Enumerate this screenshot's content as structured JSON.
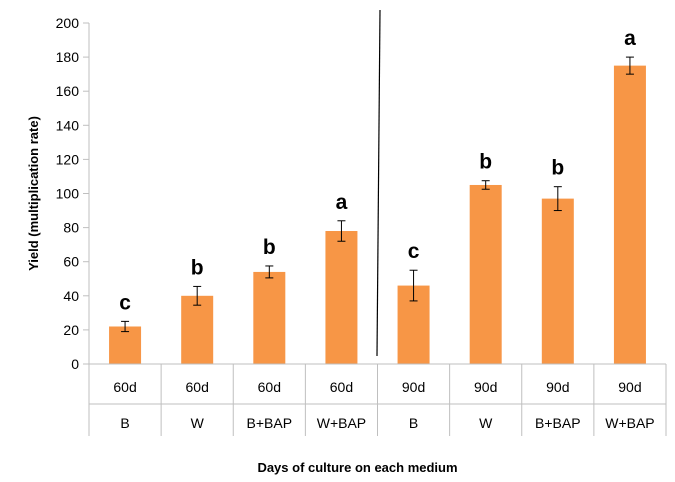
{
  "chart_data": {
    "type": "bar",
    "title": "",
    "ylabel": "Yield (multiplication rate)",
    "xlabel": "Days of culture on each medium",
    "ylim": [
      0,
      200
    ],
    "yticks": [
      0,
      20,
      40,
      60,
      80,
      100,
      120,
      140,
      160,
      180,
      200
    ],
    "grid": false,
    "bar_color": "#f79646",
    "categories": [
      {
        "days": "60d",
        "medium": "B"
      },
      {
        "days": "60d",
        "medium": "W"
      },
      {
        "days": "60d",
        "medium": "B+BAP"
      },
      {
        "days": "60d",
        "medium": "W+BAP"
      },
      {
        "days": "90d",
        "medium": "B"
      },
      {
        "days": "90d",
        "medium": "W"
      },
      {
        "days": "90d",
        "medium": "B+BAP"
      },
      {
        "days": "90d",
        "medium": "W+BAP"
      }
    ],
    "values": [
      22,
      40,
      54,
      78,
      46,
      105,
      97,
      175
    ],
    "errors": [
      3,
      5.5,
      3.5,
      6,
      9,
      2.5,
      7,
      5
    ],
    "significance": [
      "c",
      "b",
      "b",
      "a",
      "c",
      "b",
      "b",
      "a"
    ]
  }
}
